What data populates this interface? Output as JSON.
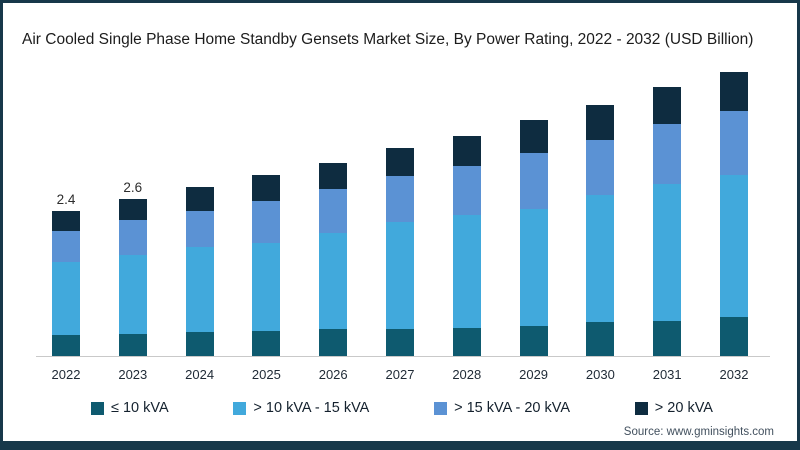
{
  "title": "Air Cooled Single Phase Home Standby Gensets Market Size, By Power Rating, 2022 - 2032 (USD Billion)",
  "source": "Source: www.gminsights.com",
  "frame": {
    "border_color": "#17384a",
    "background": "#ffffff",
    "axis_line_color": "#c9c9c9"
  },
  "chart_data": {
    "type": "bar",
    "stacked": true,
    "title": "Air Cooled Single Phase Home Standby Gensets Market Size, By Power Rating, 2022 - 2032 (USD Billion)",
    "xlabel": "",
    "ylabel": "USD Billion",
    "ylim": [
      0,
      5
    ],
    "grid": false,
    "legend_position": "bottom",
    "categories": [
      "2022",
      "2023",
      "2024",
      "2025",
      "2026",
      "2027",
      "2028",
      "2029",
      "2030",
      "2031",
      "2032"
    ],
    "series": [
      {
        "name": "≤ 10 kVA",
        "color": "#0e5a6f",
        "values": [
          0.35,
          0.36,
          0.4,
          0.41,
          0.44,
          0.45,
          0.47,
          0.5,
          0.56,
          0.58,
          0.65
        ]
      },
      {
        "name": "> 10 kVA - 15 kVA",
        "color": "#41a9dc",
        "values": [
          1.2,
          1.31,
          1.4,
          1.46,
          1.6,
          1.77,
          1.86,
          1.94,
          2.1,
          2.27,
          2.35
        ]
      },
      {
        "name": "> 15 kVA - 20 kVA",
        "color": "#5b92d4",
        "values": [
          0.52,
          0.58,
          0.6,
          0.7,
          0.72,
          0.76,
          0.82,
          0.92,
          0.92,
          0.99,
          1.05
        ]
      },
      {
        "name": "> 20 kVA",
        "color": "#0e2c40",
        "values": [
          0.33,
          0.35,
          0.4,
          0.43,
          0.44,
          0.47,
          0.5,
          0.54,
          0.57,
          0.61,
          0.65
        ]
      }
    ],
    "totals": [
      2.4,
      2.6,
      2.8,
      3.0,
      3.2,
      3.45,
      3.65,
      3.9,
      4.15,
      4.45,
      4.7
    ],
    "bar_labels": [
      "2.4",
      "2.6",
      "",
      "",
      "",
      "",
      "",
      "",
      "",
      "",
      ""
    ]
  }
}
